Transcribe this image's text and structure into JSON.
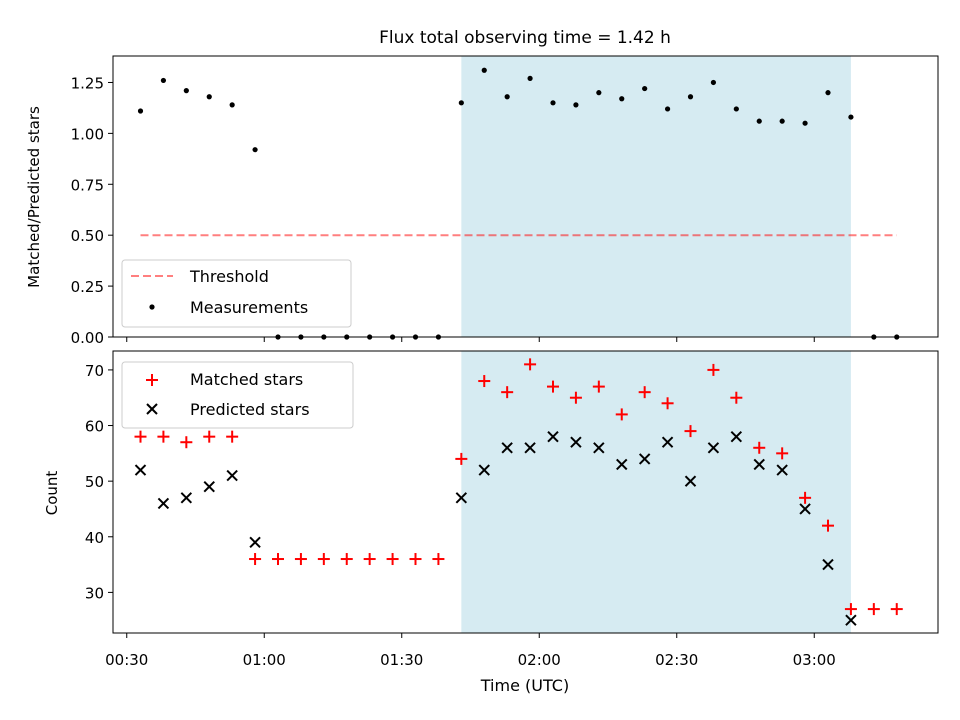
{
  "title": "Flux total observing time = 1.42 h",
  "colors": {
    "band": "#add8e6",
    "threshold": "#ff0000",
    "measurement": "#000000",
    "matched": "#ff0000",
    "predicted": "#000000"
  },
  "chart_data": [
    {
      "type": "scatter",
      "ylabel": "Matched/Predicted stars",
      "ylim": [
        0,
        1.38
      ],
      "yticks": [
        0,
        0.25,
        0.5,
        0.75,
        1.0,
        1.25
      ],
      "ytick_labels": [
        "0.00",
        "0.25",
        "0.50",
        "0.75",
        "1.00",
        "1.25"
      ],
      "highlight_span": {
        "x": [
          "01:43",
          "03:08"
        ]
      },
      "legend": {
        "placement": "lower-left",
        "entries": [
          "Threshold",
          "Measurements"
        ]
      },
      "series": [
        {
          "name": "Threshold",
          "style": "dashed-line",
          "x": [
            "00:33",
            "03:18"
          ],
          "values": [
            0.5,
            0.5
          ]
        },
        {
          "name": "Measurements",
          "style": "dot",
          "x": [
            "00:33",
            "00:38",
            "00:43",
            "00:48",
            "00:53",
            "00:58",
            "01:03",
            "01:08",
            "01:13",
            "01:18",
            "01:23",
            "01:28",
            "01:33",
            "01:38",
            "01:43",
            "01:48",
            "01:53",
            "01:58",
            "02:03",
            "02:08",
            "02:13",
            "02:18",
            "02:23",
            "02:28",
            "02:33",
            "02:38",
            "02:43",
            "02:48",
            "02:53",
            "02:58",
            "03:03",
            "03:08",
            "03:13",
            "03:18"
          ],
          "values": [
            1.11,
            1.26,
            1.21,
            1.18,
            1.14,
            0.92,
            0,
            0,
            0,
            0,
            0,
            0,
            0,
            0,
            1.15,
            1.31,
            1.18,
            1.27,
            1.15,
            1.14,
            1.2,
            1.17,
            1.22,
            1.12,
            1.18,
            1.25,
            1.12,
            1.06,
            1.06,
            1.05,
            1.2,
            1.08,
            0,
            0
          ]
        }
      ]
    },
    {
      "type": "scatter",
      "xlabel": "Time (UTC)",
      "ylabel": "Count",
      "ylim": [
        22.7,
        73.4
      ],
      "yticks": [
        30,
        40,
        50,
        60,
        70
      ],
      "xticks": [
        "00:30",
        "01:00",
        "01:30",
        "02:00",
        "02:30",
        "03:00"
      ],
      "xlim": [
        "00:27",
        "03:27"
      ],
      "highlight_span": {
        "x": [
          "01:43",
          "03:08"
        ]
      },
      "legend": {
        "placement": "upper-left",
        "entries": [
          "Matched stars",
          "Predicted stars"
        ]
      },
      "series": [
        {
          "name": "Matched stars",
          "marker": "plus",
          "x": [
            "00:33",
            "00:38",
            "00:43",
            "00:48",
            "00:53",
            "00:58",
            "01:03",
            "01:08",
            "01:13",
            "01:18",
            "01:23",
            "01:28",
            "01:33",
            "01:38",
            "01:43",
            "01:48",
            "01:53",
            "01:58",
            "02:03",
            "02:08",
            "02:13",
            "02:18",
            "02:23",
            "02:28",
            "02:33",
            "02:38",
            "02:43",
            "02:48",
            "02:53",
            "02:58",
            "03:03",
            "03:08",
            "03:13",
            "03:18"
          ],
          "values": [
            58,
            58,
            57,
            58,
            58,
            36,
            36,
            36,
            36,
            36,
            36,
            36,
            36,
            36,
            54,
            68,
            66,
            71,
            67,
            65,
            67,
            62,
            66,
            64,
            59,
            70,
            65,
            56,
            55,
            47,
            42,
            27,
            27,
            27
          ]
        },
        {
          "name": "Predicted stars",
          "marker": "x",
          "x": [
            "00:33",
            "00:38",
            "00:43",
            "00:48",
            "00:53",
            "00:58",
            "01:43",
            "01:48",
            "01:53",
            "01:58",
            "02:03",
            "02:08",
            "02:13",
            "02:18",
            "02:23",
            "02:28",
            "02:33",
            "02:38",
            "02:43",
            "02:48",
            "02:53",
            "02:58",
            "03:03",
            "03:08"
          ],
          "values": [
            52,
            46,
            47,
            49,
            51,
            39,
            47,
            52,
            56,
            56,
            58,
            57,
            56,
            53,
            54,
            57,
            50,
            56,
            58,
            53,
            52,
            45,
            35,
            25
          ]
        }
      ]
    }
  ]
}
